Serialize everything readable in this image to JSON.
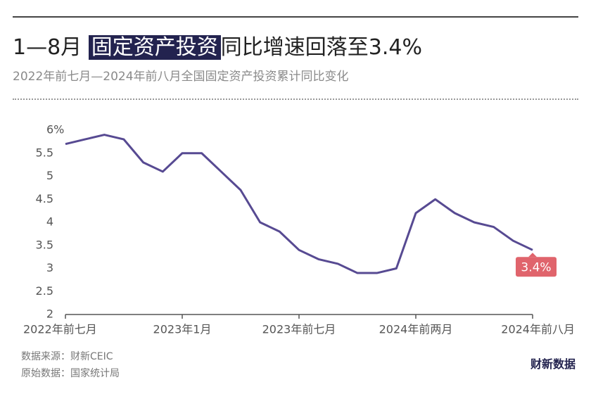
{
  "header": {
    "title_parts": [
      "1—8月",
      "固定资产投资",
      "同比增速回落至3.4%"
    ],
    "subtitle": "2022年前七月—2024年前八月全国固定资产投资累计同比变化"
  },
  "chart_data": {
    "type": "line",
    "categories": [
      "2022年前七月",
      null,
      null,
      null,
      null,
      null,
      "2023年1月",
      null,
      null,
      null,
      null,
      null,
      "2023年前七月",
      null,
      null,
      null,
      null,
      null,
      "2024年前两月",
      null,
      null,
      null,
      null,
      null,
      "2024年前八月"
    ],
    "series": [
      {
        "name": "全国固定资产投资累计同比",
        "color": "#574a92",
        "values": [
          5.7,
          5.8,
          5.9,
          5.8,
          5.3,
          5.1,
          5.5,
          5.5,
          5.1,
          4.7,
          4.0,
          3.8,
          3.4,
          3.2,
          3.1,
          2.9,
          2.9,
          3.0,
          4.2,
          4.5,
          4.2,
          4.0,
          3.9,
          3.6,
          3.4
        ],
        "value_labels": [
          null,
          null,
          null,
          null,
          null,
          null,
          null,
          null,
          null,
          null,
          null,
          null,
          null,
          null,
          null,
          null,
          null,
          null,
          null,
          null,
          null,
          null,
          null,
          null,
          "3.4%"
        ]
      }
    ],
    "ylim": [
      2,
      6
    ],
    "yticks": [
      2,
      2.5,
      3,
      3.5,
      4,
      4.5,
      5,
      5.5,
      {
        "value": 6,
        "label": "6%"
      }
    ],
    "grid": false
  },
  "footer": {
    "source": "数据来源：财新CEIC",
    "origin": "原始数据：国家统计局",
    "logo": "财新数据"
  }
}
